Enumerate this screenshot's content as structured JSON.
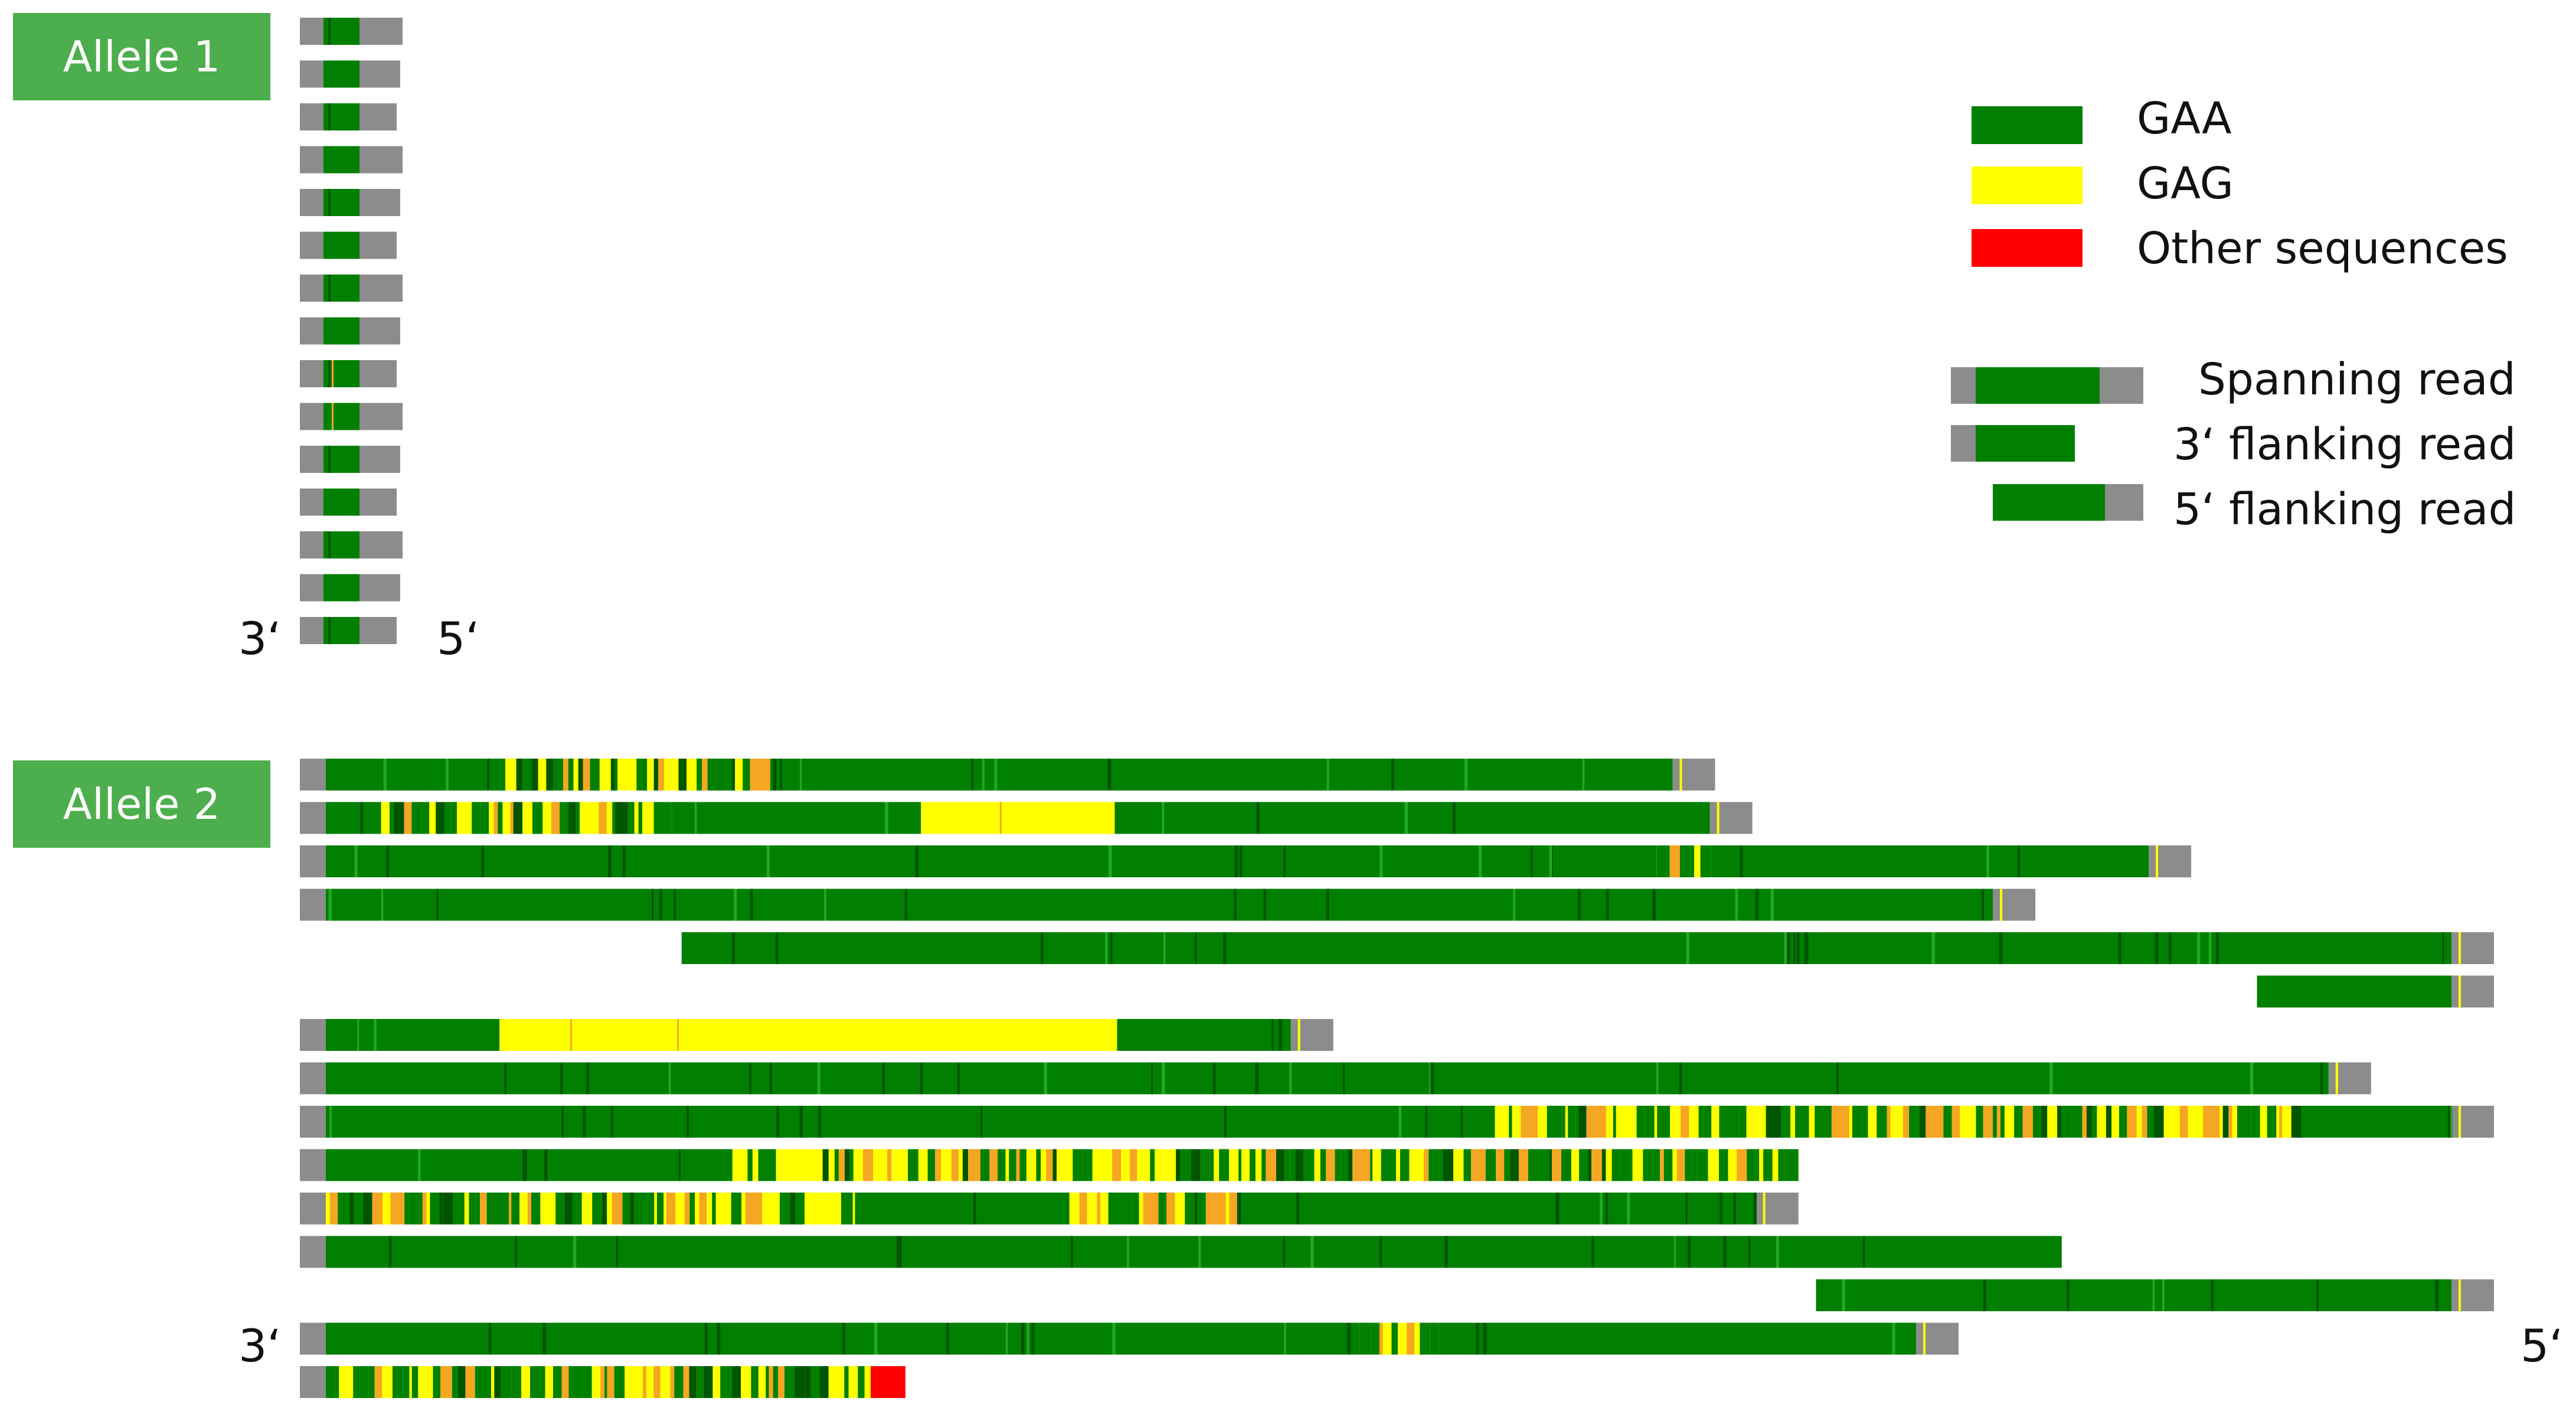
{
  "colors": {
    "gaa": "#007f00",
    "gaa_dark": "#005500",
    "gaa_light": "#1faa1f",
    "gag": "#ffff00",
    "orange": "#f5a623",
    "other": "#ff0000",
    "flank": "#8c8c8c",
    "label_bg": "#4cae4c"
  },
  "allele1": {
    "label": "Allele 1",
    "left_end": "3‘",
    "right_end": "5‘"
  },
  "allele2": {
    "label": "Allele 2",
    "left_end": "3‘",
    "right_end": "5‘"
  },
  "legend": {
    "colors": [
      {
        "label": "GAA",
        "color": "#007f00"
      },
      {
        "label": "GAG",
        "color": "#ffff00"
      },
      {
        "label": "Other sequences",
        "color": "#ff0000"
      }
    ],
    "read_types": [
      {
        "label": "Spanning read",
        "kind": "spanning"
      },
      {
        "label": "3‘ flanking read",
        "kind": "flank3"
      },
      {
        "label": "5‘ flanking read",
        "kind": "flank5"
      }
    ]
  },
  "reads": {
    "allele1": [
      {
        "type": "spanning",
        "repeat_fraction": 0.3,
        "mix": "gaa"
      },
      {
        "type": "spanning",
        "repeat_fraction": 0.3,
        "mix": "gaa"
      },
      {
        "type": "spanning",
        "repeat_fraction": 0.3,
        "mix": "gaa"
      },
      {
        "type": "spanning",
        "repeat_fraction": 0.3,
        "mix": "gaa"
      },
      {
        "type": "spanning",
        "repeat_fraction": 0.3,
        "mix": "gaa"
      },
      {
        "type": "spanning",
        "repeat_fraction": 0.3,
        "mix": "gaa"
      },
      {
        "type": "spanning",
        "repeat_fraction": 0.3,
        "mix": "gaa"
      },
      {
        "type": "spanning",
        "repeat_fraction": 0.3,
        "mix": "gaa"
      },
      {
        "type": "spanning",
        "repeat_fraction": 0.3,
        "mix": "gaa"
      },
      {
        "type": "spanning",
        "repeat_fraction": 0.3,
        "mix": "gaa"
      },
      {
        "type": "spanning",
        "repeat_fraction": 0.3,
        "mix": "gaa"
      },
      {
        "type": "spanning",
        "repeat_fraction": 0.3,
        "mix": "gaa"
      },
      {
        "type": "spanning",
        "repeat_fraction": 0.3,
        "mix": "gaa"
      },
      {
        "type": "spanning",
        "repeat_fraction": 0.3,
        "mix": "gaa"
      },
      {
        "type": "spanning",
        "repeat_fraction": 0.3,
        "mix": "gaa"
      }
    ],
    "allele2": [
      {
        "type": "spanning",
        "start": 0.0,
        "end": 0.645,
        "mix": [
          [
            "gaa",
            0.0,
            0.13
          ],
          [
            "mixed",
            0.13,
            0.33
          ],
          [
            "gaa",
            0.33,
            1.0
          ]
        ]
      },
      {
        "type": "spanning",
        "start": 0.0,
        "end": 0.662,
        "mix": [
          [
            "gaa",
            0.0,
            0.04
          ],
          [
            "mixed",
            0.04,
            0.25
          ],
          [
            "gaa",
            0.25,
            0.43
          ],
          [
            "gag",
            0.43,
            0.57
          ],
          [
            "gaa",
            0.57,
            1.0
          ]
        ]
      },
      {
        "type": "spanning",
        "start": 0.0,
        "end": 0.862,
        "mix": [
          [
            "gaa",
            0.0,
            0.73
          ],
          [
            "mixed",
            0.73,
            0.76
          ],
          [
            "gaa",
            0.76,
            1.0
          ]
        ]
      },
      {
        "type": "spanning",
        "start": 0.0,
        "end": 0.791,
        "mix": [
          [
            "gaa",
            0.0,
            1.0
          ]
        ]
      },
      {
        "type": "flank5",
        "start": 0.174,
        "end": 1.0,
        "mix": [
          [
            "gaa",
            0.0,
            1.0
          ]
        ]
      },
      {
        "type": "flank5",
        "start": 0.892,
        "end": 1.0,
        "mix": [
          [
            "gaa",
            0.0,
            1.0
          ]
        ]
      },
      {
        "type": "spanning",
        "start": 0.0,
        "end": 0.471,
        "mix": [
          [
            "gaa",
            0.0,
            0.18
          ],
          [
            "gag",
            0.18,
            0.82
          ],
          [
            "gaa",
            0.82,
            1.0
          ]
        ]
      },
      {
        "type": "spanning",
        "start": 0.0,
        "end": 0.944,
        "mix": [
          [
            "gaa",
            0.0,
            1.0
          ]
        ]
      },
      {
        "type": "spanning",
        "start": 0.0,
        "end": 1.0,
        "mix": [
          [
            "gaa",
            0.0,
            0.55
          ],
          [
            "mixed",
            0.55,
            0.93
          ],
          [
            "gaa",
            0.93,
            1.0
          ]
        ]
      },
      {
        "type": "flank3",
        "start": 0.0,
        "end": 0.683,
        "mix": [
          [
            "gaa",
            0.0,
            0.27
          ],
          [
            "mixed",
            0.27,
            1.0
          ]
        ]
      },
      {
        "type": "spanning",
        "start": 0.0,
        "end": 0.683,
        "mix": [
          [
            "mixed",
            0.0,
            0.37
          ],
          [
            "gaa",
            0.37,
            0.52
          ],
          [
            "mixed",
            0.52,
            0.64
          ],
          [
            "gaa",
            0.64,
            1.0
          ]
        ]
      },
      {
        "type": "flank3",
        "start": 0.0,
        "end": 0.803,
        "mix": [
          [
            "gaa",
            0.0,
            1.0
          ]
        ]
      },
      {
        "type": "flank5",
        "start": 0.691,
        "end": 1.0,
        "mix": [
          [
            "gaa",
            0.0,
            1.0
          ]
        ]
      },
      {
        "type": "spanning",
        "start": 0.0,
        "end": 0.756,
        "mix": [
          [
            "gaa",
            0.0,
            0.65
          ],
          [
            "mixed",
            0.65,
            0.7
          ],
          [
            "gaa",
            0.7,
            1.0
          ]
        ]
      },
      {
        "type": "flank3",
        "start": 0.0,
        "end": 0.276,
        "mix": [
          [
            "mixed",
            0.0,
            0.94
          ],
          [
            "other",
            0.94,
            1.0
          ]
        ]
      }
    ]
  }
}
